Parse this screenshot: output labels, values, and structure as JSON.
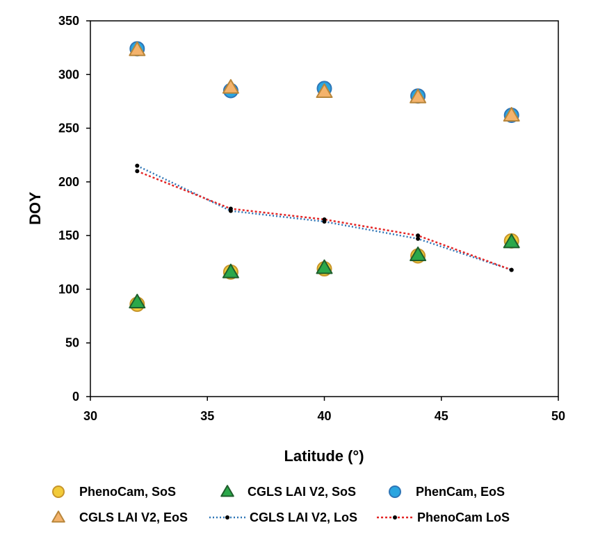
{
  "chart_data": {
    "type": "scatter",
    "xlabel": "Latitude (°)",
    "ylabel": "DOY",
    "xlim": [
      30,
      50
    ],
    "ylim": [
      0,
      350
    ],
    "xticks": [
      30,
      35,
      40,
      45,
      50
    ],
    "yticks": [
      0,
      50,
      100,
      150,
      200,
      250,
      300,
      350
    ],
    "grid": false,
    "legend_position": "bottom",
    "series": [
      {
        "name": "PhenoCam, SoS",
        "marker": "circle",
        "fill": "#F2CB3A",
        "stroke": "#C7952B",
        "line": false,
        "x": [
          32,
          36,
          40,
          44,
          48
        ],
        "y": [
          86,
          116,
          119,
          131,
          145
        ]
      },
      {
        "name": "CGLS LAI V2, SoS",
        "marker": "triangle",
        "fill": "#2BA84A",
        "stroke": "#1F5E2C",
        "line": false,
        "x": [
          32,
          36,
          40,
          44,
          48
        ],
        "y": [
          88,
          116,
          120,
          132,
          144
        ]
      },
      {
        "name": "PhenCam, EoS",
        "marker": "circle",
        "fill": "#2AA5E0",
        "stroke": "#2E75B6",
        "line": false,
        "x": [
          32,
          36,
          40,
          44,
          48
        ],
        "y": [
          324,
          285,
          287,
          280,
          262
        ]
      },
      {
        "name": "CGLS LAI V2, EoS",
        "marker": "triangle",
        "fill": "#F4B36C",
        "stroke": "#B8863B",
        "line": false,
        "x": [
          32,
          36,
          40,
          44,
          48
        ],
        "y": [
          323,
          288,
          284,
          279,
          262
        ]
      },
      {
        "name": "CGLS LAI V2, LoS",
        "marker": "dot",
        "fill": "#000000",
        "stroke": "#2E75B6",
        "line": true,
        "dash": "2,3",
        "x": [
          32,
          36,
          40,
          44,
          48
        ],
        "y": [
          215,
          173,
          163,
          147,
          118
        ]
      },
      {
        "name": "PhenoCam LoS",
        "marker": "dot",
        "fill": "#000000",
        "stroke": "#E32626",
        "line": true,
        "dash": "3,3",
        "x": [
          32,
          36,
          40,
          44,
          48
        ],
        "y": [
          210,
          175,
          165,
          150,
          118
        ]
      }
    ]
  }
}
